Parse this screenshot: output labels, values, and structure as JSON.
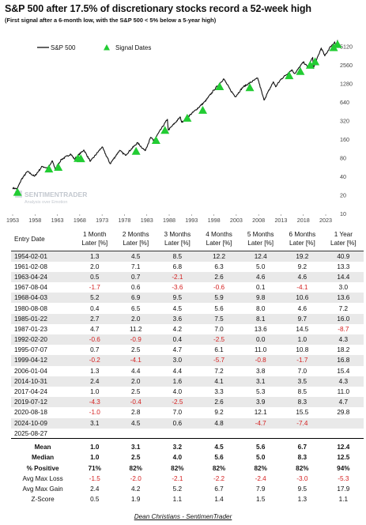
{
  "title": "S&P 500 after 17.5% of discretionary stocks record a 52-week high",
  "subtitle": "(First signal after a 6-month low, with the S&P 500 < 5% below a 5-year high)",
  "footer": "Dean Christians - SentimenTrader",
  "watermark": {
    "name": "SENTIMENTRADER",
    "tagline": "Analysis over Emotion"
  },
  "colors": {
    "line": "#111111",
    "signal": "#22cc33",
    "negative": "#d42020",
    "stripe": "#e9e9e9"
  },
  "chart_data": {
    "type": "line",
    "legend": {
      "line": "S&P 500",
      "marker": "Signal Dates",
      "placement": "top-left"
    },
    "x_ticks": [
      "1953",
      "1958",
      "1963",
      "1968",
      "1973",
      "1978",
      "1983",
      "1988",
      "1993",
      "1998",
      "2003",
      "2008",
      "2013",
      "2018",
      "2023"
    ],
    "y_ticks": [
      10,
      20,
      40,
      80,
      160,
      320,
      640,
      1280,
      2560,
      5120
    ],
    "y_scale": "log",
    "xlim": [
      1953,
      2026
    ],
    "ylim": [
      10,
      7200
    ],
    "series": [
      {
        "name": "S&P 500",
        "points": [
          [
            1953.0,
            26
          ],
          [
            1954.0,
            25
          ],
          [
            1955.0,
            36
          ],
          [
            1956.3,
            48
          ],
          [
            1957.9,
            40
          ],
          [
            1959.6,
            58
          ],
          [
            1960.9,
            54
          ],
          [
            1961.9,
            71
          ],
          [
            1962.5,
            53
          ],
          [
            1963.9,
            75
          ],
          [
            1966.0,
            92
          ],
          [
            1966.8,
            76
          ],
          [
            1968.9,
            107
          ],
          [
            1970.4,
            70
          ],
          [
            1973.0,
            120
          ],
          [
            1974.8,
            64
          ],
          [
            1976.9,
            105
          ],
          [
            1978.2,
            88
          ],
          [
            1980.9,
            140
          ],
          [
            1982.6,
            104
          ],
          [
            1983.9,
            172
          ],
          [
            1984.5,
            150
          ],
          [
            1987.6,
            336
          ],
          [
            1987.8,
            224
          ],
          [
            1990.5,
            365
          ],
          [
            1990.8,
            300
          ],
          [
            1994.0,
            480
          ],
          [
            1996.0,
            650
          ],
          [
            1998.0,
            1000
          ],
          [
            2000.2,
            1520
          ],
          [
            2001.7,
            1000
          ],
          [
            2002.8,
            780
          ],
          [
            2004.5,
            1120
          ],
          [
            2007.8,
            1560
          ],
          [
            2008.9,
            820
          ],
          [
            2009.2,
            690
          ],
          [
            2011.3,
            1360
          ],
          [
            2011.8,
            1130
          ],
          [
            2013.0,
            1500
          ],
          [
            2015.4,
            2120
          ],
          [
            2016.1,
            1850
          ],
          [
            2018.0,
            2850
          ],
          [
            2018.98,
            2360
          ],
          [
            2020.1,
            3380
          ],
          [
            2020.23,
            2240
          ],
          [
            2022.0,
            4790
          ],
          [
            2022.8,
            3580
          ],
          [
            2024.1,
            5100
          ],
          [
            2024.6,
            5500
          ],
          [
            2025.0,
            6050
          ],
          [
            2025.3,
            5000
          ],
          [
            2025.66,
            6480
          ]
        ]
      },
      {
        "name": "Signal Dates",
        "points": [
          [
            1954.09,
            26
          ],
          [
            1961.1,
            62
          ],
          [
            1963.2,
            66
          ],
          [
            1967.59,
            92
          ],
          [
            1968.25,
            91
          ],
          [
            1980.6,
            120
          ],
          [
            1985.06,
            180
          ],
          [
            1987.06,
            262
          ],
          [
            1992.04,
            413
          ],
          [
            1995.51,
            555
          ],
          [
            1999.28,
            1340
          ],
          [
            2006.03,
            1290
          ],
          [
            2014.83,
            2020
          ],
          [
            2017.32,
            2360
          ],
          [
            2019.53,
            2980
          ],
          [
            2020.63,
            3390
          ],
          [
            2024.77,
            5760
          ],
          [
            2025.65,
            6480
          ]
        ]
      }
    ]
  },
  "table": {
    "headers": [
      "Entry Date",
      "1 Month Later [%]",
      "2 Months Later [%]",
      "3 Months Later [%]",
      "4 Months Later [%]",
      "5 Months Later [%]",
      "6 Months Later [%]",
      "1 Year Later [%]"
    ],
    "rows": [
      [
        "1954-02-01",
        "1.3",
        "4.5",
        "8.5",
        "12.2",
        "12.4",
        "19.2",
        "40.9"
      ],
      [
        "1961-02-08",
        "2.0",
        "7.1",
        "6.8",
        "6.3",
        "5.0",
        "9.2",
        "13.3"
      ],
      [
        "1963-04-24",
        "0.5",
        "0.7",
        "-2.1",
        "2.6",
        "4.6",
        "4.6",
        "14.4"
      ],
      [
        "1967-08-04",
        "-1.7",
        "0.6",
        "-3.6",
        "-0.6",
        "0.1",
        "-4.1",
        "3.0"
      ],
      [
        "1968-04-03",
        "5.2",
        "6.9",
        "9.5",
        "5.9",
        "9.8",
        "10.6",
        "13.6"
      ],
      [
        "1980-08-08",
        "0.4",
        "6.5",
        "4.5",
        "5.6",
        "8.0",
        "4.6",
        "7.2"
      ],
      [
        "1985-01-22",
        "2.7",
        "2.0",
        "3.6",
        "7.5",
        "8.1",
        "9.7",
        "16.0"
      ],
      [
        "1987-01-23",
        "4.7",
        "11.2",
        "4.2",
        "7.0",
        "13.6",
        "14.5",
        "-8.7"
      ],
      [
        "1992-02-20",
        "-0.6",
        "-0.9",
        "0.4",
        "-2.5",
        "0.0",
        "1.0",
        "4.3"
      ],
      [
        "1995-07-07",
        "0.7",
        "2.5",
        "4.7",
        "6.1",
        "11.0",
        "10.8",
        "18.2"
      ],
      [
        "1999-04-12",
        "-0.2",
        "-4.1",
        "3.0",
        "-5.7",
        "-0.8",
        "-1.7",
        "16.8"
      ],
      [
        "2006-01-04",
        "1.3",
        "4.4",
        "4.4",
        "7.2",
        "3.8",
        "7.0",
        "15.4"
      ],
      [
        "2014-10-31",
        "2.4",
        "2.0",
        "1.6",
        "4.1",
        "3.1",
        "3.5",
        "4.3"
      ],
      [
        "2017-04-24",
        "1.0",
        "2.5",
        "4.0",
        "3.3",
        "5.3",
        "8.5",
        "11.0"
      ],
      [
        "2019-07-12",
        "-4.3",
        "-0.4",
        "-2.5",
        "2.6",
        "3.9",
        "8.3",
        "4.7"
      ],
      [
        "2020-08-18",
        "-1.0",
        "2.8",
        "7.0",
        "9.2",
        "12.1",
        "15.5",
        "29.8"
      ],
      [
        "2024-10-09",
        "3.1",
        "4.5",
        "0.6",
        "4.8",
        "-4.7",
        "-7.4",
        ""
      ],
      [
        "2025-08-27",
        "",
        "",
        "",
        "",
        "",
        "",
        ""
      ]
    ],
    "summary": [
      [
        "Mean",
        "1.0",
        "3.1",
        "3.2",
        "4.5",
        "5.6",
        "6.7",
        "12.4"
      ],
      [
        "Median",
        "1.0",
        "2.5",
        "4.0",
        "5.6",
        "5.0",
        "8.3",
        "12.5"
      ],
      [
        "% Positive",
        "71%",
        "82%",
        "82%",
        "82%",
        "82%",
        "82%",
        "94%"
      ],
      [
        "Avg Max Loss",
        "-1.5",
        "-2.0",
        "-2.1",
        "-2.2",
        "-2.4",
        "-3.0",
        "-5.3"
      ],
      [
        "Avg Max Gain",
        "2.4",
        "4.2",
        "5.2",
        "6.7",
        "7.9",
        "9.5",
        "17.9"
      ],
      [
        "Z-Score",
        "0.5",
        "1.9",
        "1.1",
        "1.4",
        "1.5",
        "1.3",
        "1.1"
      ]
    ]
  }
}
